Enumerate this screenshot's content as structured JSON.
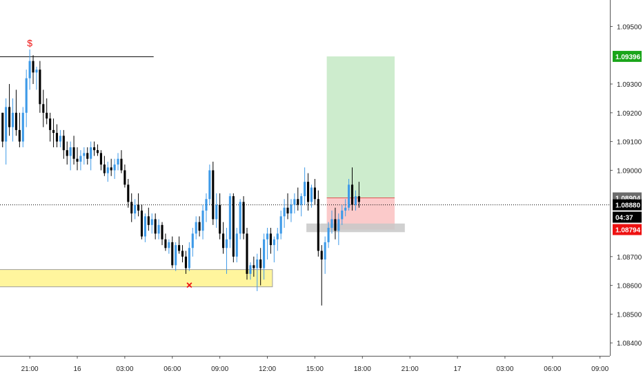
{
  "chart_data": {
    "type": "candlestick",
    "x_axis": {
      "ticks": [
        {
          "label": "21:00",
          "bar": 8
        },
        {
          "label": "16",
          "bar": 22
        },
        {
          "label": "03:00",
          "bar": 36
        },
        {
          "label": "06:00",
          "bar": 50
        },
        {
          "label": "09:00",
          "bar": 64
        },
        {
          "label": "12:00",
          "bar": 78
        },
        {
          "label": "15:00",
          "bar": 92
        },
        {
          "label": "18:00",
          "bar": 106
        },
        {
          "label": "21:00",
          "bar": 120
        },
        {
          "label": "17",
          "bar": 134
        },
        {
          "label": "03:00",
          "bar": 148
        },
        {
          "label": "06:00",
          "bar": 162
        },
        {
          "label": "09:00",
          "bar": 176
        }
      ]
    },
    "y_axis": {
      "range": [
        1.08355,
        1.09592
      ],
      "ticks": [
        "1.09500",
        "1.09300",
        "1.09200",
        "1.09100",
        "1.09000",
        "1.08700",
        "1.08600",
        "1.08500",
        "1.08400"
      ]
    },
    "price_badges": [
      {
        "label": "1.09396",
        "value": 1.09396,
        "color": "#1aa51a"
      },
      {
        "label": "1.08904",
        "value": 1.08904,
        "color": "#6b6b6b"
      },
      {
        "label": "1.08880",
        "value": 1.0888,
        "color": "#000000"
      },
      {
        "label": "04:37",
        "value": 1.08837,
        "color": "#000000"
      },
      {
        "label": "1.08794",
        "value": 1.08794,
        "color": "#ee1111"
      }
    ],
    "current_price": 1.0888,
    "resistance_line": {
      "price": 1.09395,
      "from_bar": -1,
      "to_bar": 45
    },
    "marker_dollar": {
      "text": "$",
      "bar": 8,
      "price": 1.0943,
      "color": "#ee1111"
    },
    "marker_x": {
      "text": "×",
      "bar": 55,
      "price": 1.086,
      "color": "#ee1111"
    },
    "demand_zone": {
      "top": 1.08655,
      "bottom": 1.08595,
      "from_bar": -1,
      "to_bar": 80,
      "color": "#fff59d"
    },
    "position": {
      "from_bar": 96,
      "to_bar": 116,
      "entry": 1.08904,
      "target": 1.09396,
      "stop": 1.08794,
      "profit_color": "#cdeccd",
      "loss_color": "#fbcaca"
    },
    "grey_band": {
      "top": 1.08815,
      "bottom": 1.08785,
      "from_bar": 90,
      "to_bar": 119
    },
    "candles": [
      [
        1.092,
        1.092,
        1.0908,
        1.091
      ],
      [
        1.091,
        1.0925,
        1.0902,
        1.0922
      ],
      [
        1.0922,
        1.093,
        1.0912,
        1.0915
      ],
      [
        1.0915,
        1.0925,
        1.091,
        1.092
      ],
      [
        1.092,
        1.0928,
        1.0912,
        1.0914
      ],
      [
        1.0914,
        1.092,
        1.0908,
        1.091
      ],
      [
        1.091,
        1.0922,
        1.0908,
        1.092
      ],
      [
        1.092,
        1.0935,
        1.0915,
        1.0932
      ],
      [
        1.0932,
        1.0942,
        1.0928,
        1.0938
      ],
      [
        1.0938,
        1.094,
        1.093,
        1.0934
      ],
      [
        1.0934,
        1.0936,
        1.0928,
        1.0935
      ],
      [
        1.0935,
        1.0938,
        1.092,
        1.0923
      ],
      [
        1.0923,
        1.0928,
        1.0915,
        1.092
      ],
      [
        1.092,
        1.0925,
        1.0916,
        1.0918
      ],
      [
        1.0918,
        1.092,
        1.091,
        1.0914
      ],
      [
        1.0914,
        1.0918,
        1.0908,
        1.0913
      ],
      [
        1.0913,
        1.0916,
        1.0908,
        1.091
      ],
      [
        1.091,
        1.0914,
        1.0908,
        1.0912
      ],
      [
        1.0912,
        1.0914,
        1.0904,
        1.0907
      ],
      [
        1.0907,
        1.091,
        1.0902,
        1.0905
      ],
      [
        1.0905,
        1.091,
        1.09,
        1.0908
      ],
      [
        1.0908,
        1.0912,
        1.0902,
        1.0904
      ],
      [
        1.0904,
        1.0908,
        1.09,
        1.0903
      ],
      [
        1.0903,
        1.0907,
        1.09,
        1.0905
      ],
      [
        1.0905,
        1.0908,
        1.0902,
        1.0906
      ],
      [
        1.0906,
        1.0908,
        1.0902,
        1.0904
      ],
      [
        1.0904,
        1.091,
        1.09,
        1.0908
      ],
      [
        1.0908,
        1.091,
        1.0905,
        1.0907
      ],
      [
        1.0907,
        1.0909,
        1.0905,
        1.0906
      ],
      [
        1.0906,
        1.0907,
        1.09,
        1.0902
      ],
      [
        1.0902,
        1.0905,
        1.0898,
        1.0899
      ],
      [
        1.0899,
        1.0903,
        1.0896,
        1.0901
      ],
      [
        1.0901,
        1.0904,
        1.0898,
        1.09
      ],
      [
        1.09,
        1.0904,
        1.0897,
        1.0902
      ],
      [
        1.0902,
        1.0906,
        1.09,
        1.0904
      ],
      [
        1.0904,
        1.0907,
        1.0899,
        1.09
      ],
      [
        1.09,
        1.0902,
        1.0894,
        1.0895
      ],
      [
        1.0895,
        1.0897,
        1.0887,
        1.0889
      ],
      [
        1.0889,
        1.0892,
        1.0882,
        1.0885
      ],
      [
        1.0885,
        1.089,
        1.0883,
        1.0888
      ],
      [
        1.0888,
        1.0892,
        1.0884,
        1.0886
      ],
      [
        1.0886,
        1.0888,
        1.0876,
        1.0877
      ],
      [
        1.0877,
        1.0885,
        1.0875,
        1.0884
      ],
      [
        1.0884,
        1.0887,
        1.0879,
        1.0881
      ],
      [
        1.0881,
        1.0885,
        1.0878,
        1.0883
      ],
      [
        1.0883,
        1.0885,
        1.0876,
        1.0878
      ],
      [
        1.0878,
        1.0883,
        1.0876,
        1.0881
      ],
      [
        1.0881,
        1.0882,
        1.0874,
        1.0876
      ],
      [
        1.0876,
        1.0878,
        1.0872,
        1.0873
      ],
      [
        1.0873,
        1.0876,
        1.0871,
        1.0875
      ],
      [
        1.0875,
        1.0877,
        1.0866,
        1.0867
      ],
      [
        1.0867,
        1.0875,
        1.0865,
        1.0874
      ],
      [
        1.0874,
        1.0877,
        1.0871,
        1.0872
      ],
      [
        1.0872,
        1.0874,
        1.0868,
        1.087
      ],
      [
        1.087,
        1.0872,
        1.0864,
        1.0866
      ],
      [
        1.0866,
        1.0875,
        1.0865,
        1.0873
      ],
      [
        1.0873,
        1.088,
        1.087,
        1.0878
      ],
      [
        1.0878,
        1.0884,
        1.0876,
        1.0882
      ],
      [
        1.0882,
        1.0884,
        1.0877,
        1.0879
      ],
      [
        1.0879,
        1.0888,
        1.0876,
        1.0886
      ],
      [
        1.0886,
        1.0892,
        1.0882,
        1.089
      ],
      [
        1.089,
        1.0902,
        1.0888,
        1.09
      ],
      [
        1.09,
        1.0903,
        1.0881,
        1.0883
      ],
      [
        1.0883,
        1.0892,
        1.088,
        1.0888
      ],
      [
        1.0888,
        1.0892,
        1.0876,
        1.0878
      ],
      [
        1.0878,
        1.0882,
        1.0871,
        1.0873
      ],
      [
        1.0873,
        1.088,
        1.0864,
        1.0876
      ],
      [
        1.0876,
        1.0892,
        1.0873,
        1.0891
      ],
      [
        1.0891,
        1.0892,
        1.0868,
        1.087
      ],
      [
        1.087,
        1.088,
        1.0868,
        1.0878
      ],
      [
        1.0878,
        1.089,
        1.0876,
        1.0889
      ],
      [
        1.0889,
        1.0891,
        1.0876,
        1.0878
      ],
      [
        1.0878,
        1.088,
        1.0862,
        1.0864
      ],
      [
        1.0864,
        1.0868,
        1.0862,
        1.0867
      ],
      [
        1.0867,
        1.087,
        1.0863,
        1.0866
      ],
      [
        1.0866,
        1.0871,
        1.0858,
        1.0869
      ],
      [
        1.0869,
        1.0873,
        1.086,
        1.0866
      ],
      [
        1.0866,
        1.0878,
        1.0862,
        1.0876
      ],
      [
        1.0876,
        1.088,
        1.0869,
        1.0878
      ],
      [
        1.0878,
        1.088,
        1.0871,
        1.0874
      ],
      [
        1.0874,
        1.0877,
        1.0868,
        1.0876
      ],
      [
        1.0876,
        1.088,
        1.0872,
        1.0878
      ],
      [
        1.0878,
        1.0886,
        1.0876,
        1.0884
      ],
      [
        1.0884,
        1.089,
        1.088,
        1.0887
      ],
      [
        1.0887,
        1.0892,
        1.0883,
        1.0885
      ],
      [
        1.0885,
        1.089,
        1.0882,
        1.0888
      ],
      [
        1.0888,
        1.0892,
        1.0885,
        1.089
      ],
      [
        1.089,
        1.0894,
        1.0886,
        1.0888
      ],
      [
        1.0888,
        1.0892,
        1.0884,
        1.0891
      ],
      [
        1.0891,
        1.0901,
        1.0888,
        1.0896
      ],
      [
        1.0896,
        1.0899,
        1.0886,
        1.0889
      ],
      [
        1.0889,
        1.0895,
        1.0887,
        1.0894
      ],
      [
        1.0894,
        1.0897,
        1.0888,
        1.089
      ],
      [
        1.089,
        1.0893,
        1.087,
        1.0872
      ],
      [
        1.0872,
        1.0874,
        1.0853,
        1.0869
      ],
      [
        1.0869,
        1.0877,
        1.0864,
        1.0875
      ],
      [
        1.0875,
        1.0882,
        1.0873,
        1.088
      ],
      [
        1.088,
        1.0886,
        1.0878,
        1.0883
      ],
      [
        1.0883,
        1.0887,
        1.0876,
        1.0879
      ],
      [
        1.0879,
        1.0885,
        1.0874,
        1.0883
      ],
      [
        1.0883,
        1.0888,
        1.0881,
        1.0886
      ],
      [
        1.0886,
        1.089,
        1.0884,
        1.0887
      ],
      [
        1.0887,
        1.0897,
        1.0886,
        1.0895
      ],
      [
        1.0895,
        1.0901,
        1.0886,
        1.0888
      ],
      [
        1.0888,
        1.0893,
        1.0886,
        1.0891
      ],
      [
        1.0891,
        1.0896,
        1.0887,
        1.0889
      ]
    ]
  }
}
